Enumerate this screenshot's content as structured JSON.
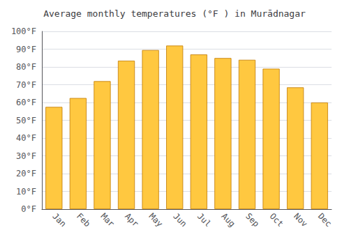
{
  "chart_data": {
    "type": "bar",
    "title": "Average monthly temperatures (°F ) in Murādnagar",
    "categories": [
      "Jan",
      "Feb",
      "Mar",
      "Apr",
      "May",
      "Jun",
      "Jul",
      "Aug",
      "Sep",
      "Oct",
      "Nov",
      "Dec"
    ],
    "values": [
      57.5,
      62.5,
      72,
      83.5,
      89.5,
      92,
      87,
      85,
      84,
      79,
      68.5,
      60
    ],
    "color": "#FFC840",
    "ylim": [
      0,
      100
    ],
    "yticks": [
      {
        "value": 0,
        "label": "0°F"
      },
      {
        "value": 10,
        "label": "10°F"
      },
      {
        "value": 20,
        "label": "20°F"
      },
      {
        "value": 30,
        "label": "30°F"
      },
      {
        "value": 40,
        "label": "40°F"
      },
      {
        "value": 50,
        "label": "50°F"
      },
      {
        "value": 60,
        "label": "60°F"
      },
      {
        "value": 70,
        "label": "70°F"
      },
      {
        "value": 80,
        "label": "80°F"
      },
      {
        "value": 90,
        "label": "90°F"
      },
      {
        "value": 100,
        "label": "100°F"
      }
    ],
    "grid": true
  }
}
